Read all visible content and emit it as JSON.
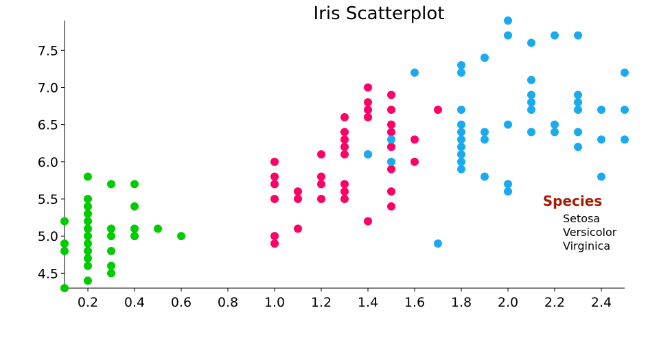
{
  "chart_data": {
    "type": "scatter",
    "title": "Iris Scatterplot",
    "xlabel": "",
    "ylabel": "",
    "xlim": [
      0.1,
      2.5
    ],
    "ylim": [
      4.3,
      7.9
    ],
    "x_ticks": [
      "0.2",
      "0.4",
      "0.6",
      "0.8",
      "1.0",
      "1.2",
      "1.4",
      "1.6",
      "1.8",
      "2.0",
      "2.2",
      "2.4"
    ],
    "y_ticks": [
      "4.5",
      "5.0",
      "5.5",
      "6.0",
      "6.5",
      "7.0",
      "7.5"
    ],
    "grid": false,
    "legend": {
      "title": "Species",
      "title_color": "#a31a00",
      "placement": "right",
      "entries": [
        "Setosa",
        "Versicolor",
        "Virginica"
      ]
    },
    "series": [
      {
        "name": "Setosa",
        "color": "#00cc00",
        "points": [
          [
            0.1,
            5.2
          ],
          [
            0.1,
            4.9
          ],
          [
            0.1,
            4.8
          ],
          [
            0.1,
            4.3
          ],
          [
            0.2,
            5.8
          ],
          [
            0.2,
            5.5
          ],
          [
            0.2,
            5.4
          ],
          [
            0.2,
            5.3
          ],
          [
            0.2,
            5.2
          ],
          [
            0.2,
            5.1
          ],
          [
            0.2,
            5.0
          ],
          [
            0.2,
            4.9
          ],
          [
            0.2,
            4.8
          ],
          [
            0.2,
            4.7
          ],
          [
            0.2,
            4.6
          ],
          [
            0.2,
            4.4
          ],
          [
            0.3,
            5.7
          ],
          [
            0.3,
            5.1
          ],
          [
            0.3,
            5.0
          ],
          [
            0.3,
            4.8
          ],
          [
            0.3,
            4.6
          ],
          [
            0.3,
            4.5
          ],
          [
            0.4,
            5.7
          ],
          [
            0.4,
            5.4
          ],
          [
            0.4,
            5.1
          ],
          [
            0.4,
            5.0
          ],
          [
            0.5,
            5.1
          ],
          [
            0.6,
            5.0
          ]
        ]
      },
      {
        "name": "Versicolor",
        "color": "#ff0066",
        "points": [
          [
            1.0,
            6.0
          ],
          [
            1.0,
            5.8
          ],
          [
            1.0,
            5.7
          ],
          [
            1.0,
            5.5
          ],
          [
            1.0,
            5.0
          ],
          [
            1.0,
            4.9
          ],
          [
            1.1,
            5.6
          ],
          [
            1.1,
            5.5
          ],
          [
            1.1,
            5.1
          ],
          [
            1.2,
            6.1
          ],
          [
            1.2,
            5.8
          ],
          [
            1.2,
            5.7
          ],
          [
            1.2,
            5.5
          ],
          [
            1.3,
            6.6
          ],
          [
            1.3,
            6.4
          ],
          [
            1.3,
            6.3
          ],
          [
            1.3,
            6.2
          ],
          [
            1.3,
            6.1
          ],
          [
            1.3,
            5.7
          ],
          [
            1.3,
            5.6
          ],
          [
            1.3,
            5.5
          ],
          [
            1.4,
            7.0
          ],
          [
            1.4,
            6.8
          ],
          [
            1.4,
            6.7
          ],
          [
            1.4,
            6.6
          ],
          [
            1.4,
            6.1
          ],
          [
            1.4,
            5.2
          ],
          [
            1.5,
            6.9
          ],
          [
            1.5,
            6.7
          ],
          [
            1.5,
            6.5
          ],
          [
            1.5,
            6.4
          ],
          [
            1.5,
            6.2
          ],
          [
            1.5,
            5.9
          ],
          [
            1.5,
            5.6
          ],
          [
            1.5,
            5.4
          ],
          [
            1.6,
            6.3
          ],
          [
            1.6,
            6.0
          ],
          [
            1.7,
            6.7
          ]
        ]
      },
      {
        "name": "Virginica",
        "color": "#1aaaf0",
        "points": [
          [
            1.4,
            6.1
          ],
          [
            1.5,
            6.3
          ],
          [
            1.5,
            6.0
          ],
          [
            1.6,
            7.2
          ],
          [
            1.7,
            4.9
          ],
          [
            1.8,
            7.3
          ],
          [
            1.8,
            7.2
          ],
          [
            1.8,
            6.7
          ],
          [
            1.8,
            6.5
          ],
          [
            1.8,
            6.4
          ],
          [
            1.8,
            6.3
          ],
          [
            1.8,
            6.2
          ],
          [
            1.8,
            6.1
          ],
          [
            1.8,
            6.0
          ],
          [
            1.8,
            5.9
          ],
          [
            1.9,
            7.4
          ],
          [
            1.9,
            6.4
          ],
          [
            1.9,
            6.3
          ],
          [
            1.9,
            5.8
          ],
          [
            2.0,
            7.9
          ],
          [
            2.0,
            7.7
          ],
          [
            2.0,
            6.5
          ],
          [
            2.0,
            5.7
          ],
          [
            2.0,
            5.6
          ],
          [
            2.1,
            7.6
          ],
          [
            2.1,
            7.1
          ],
          [
            2.1,
            6.9
          ],
          [
            2.1,
            6.8
          ],
          [
            2.1,
            6.7
          ],
          [
            2.1,
            6.4
          ],
          [
            2.2,
            7.7
          ],
          [
            2.2,
            6.5
          ],
          [
            2.2,
            6.4
          ],
          [
            2.3,
            7.7
          ],
          [
            2.3,
            6.9
          ],
          [
            2.3,
            6.8
          ],
          [
            2.3,
            6.7
          ],
          [
            2.3,
            6.4
          ],
          [
            2.3,
            6.2
          ],
          [
            2.4,
            6.7
          ],
          [
            2.4,
            6.3
          ],
          [
            2.4,
            5.8
          ],
          [
            2.5,
            7.2
          ],
          [
            2.5,
            6.7
          ],
          [
            2.5,
            6.3
          ]
        ]
      }
    ]
  }
}
